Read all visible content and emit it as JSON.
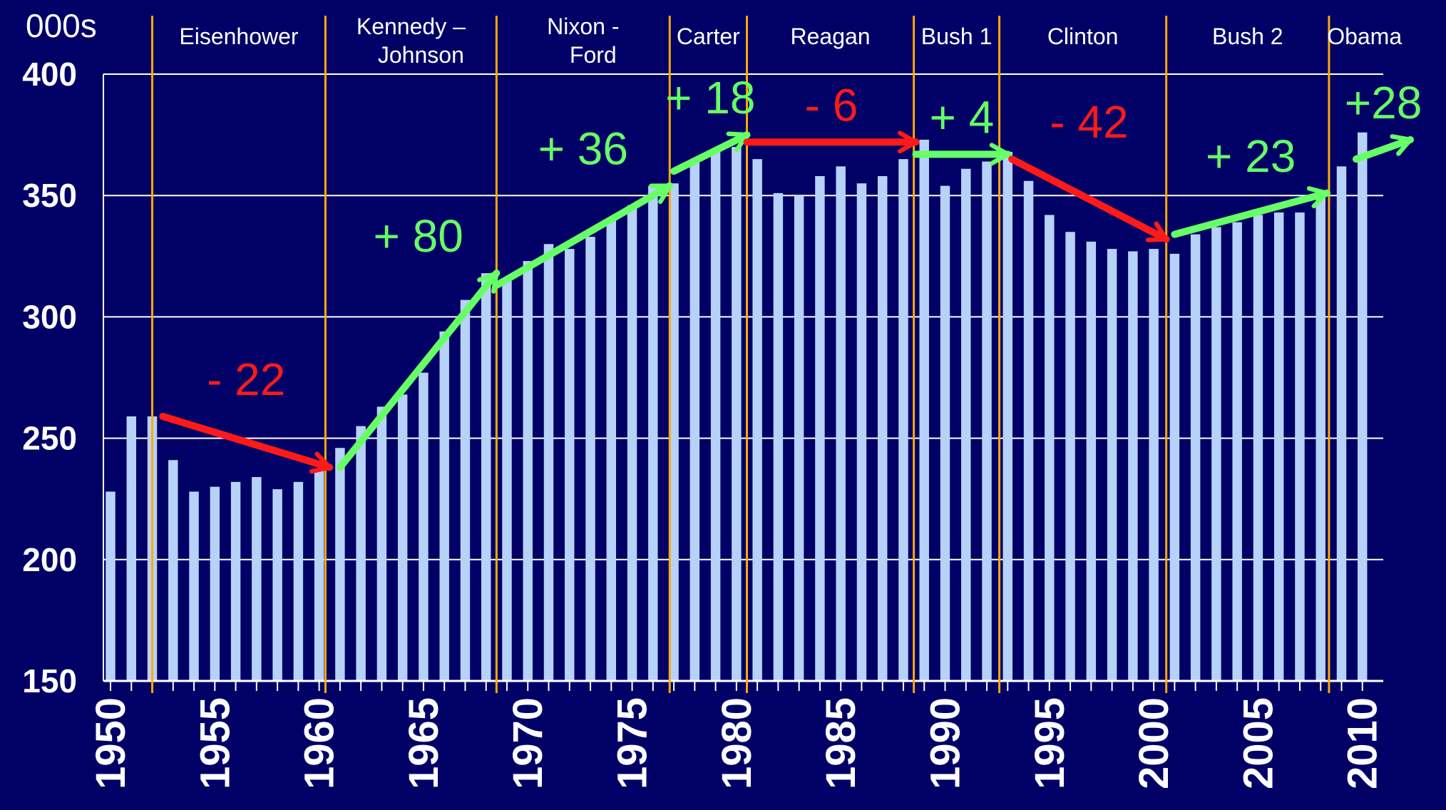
{
  "chart_data": {
    "type": "bar",
    "unit_label": "000s",
    "x": [
      1950,
      1951,
      1952,
      1953,
      1954,
      1955,
      1956,
      1957,
      1958,
      1959,
      1960,
      1961,
      1962,
      1963,
      1964,
      1965,
      1966,
      1967,
      1968,
      1969,
      1970,
      1971,
      1972,
      1973,
      1974,
      1975,
      1976,
      1977,
      1978,
      1979,
      1980,
      1981,
      1982,
      1983,
      1984,
      1985,
      1986,
      1987,
      1988,
      1989,
      1990,
      1991,
      1992,
      1993,
      1994,
      1995,
      1996,
      1997,
      1998,
      1999,
      2000,
      2001,
      2002,
      2003,
      2004,
      2005,
      2006,
      2007,
      2008,
      2009,
      2010
    ],
    "values": [
      228,
      259,
      259,
      241,
      228,
      230,
      232,
      234,
      229,
      232,
      237,
      246,
      255,
      263,
      268,
      277,
      294,
      307,
      318,
      316,
      323,
      330,
      328,
      333,
      340,
      346,
      354,
      355,
      365,
      369,
      370,
      365,
      351,
      350,
      358,
      362,
      355,
      358,
      365,
      373,
      354,
      361,
      364,
      368,
      356,
      342,
      335,
      331,
      328,
      327,
      328,
      326,
      334,
      337,
      339,
      342,
      343,
      343,
      349,
      362,
      376
    ],
    "ylim": [
      150,
      400
    ],
    "yticks": [
      150,
      200,
      250,
      300,
      350,
      400
    ],
    "xtick_labels": [
      "1950",
      "1955",
      "1960",
      "1965",
      "1970",
      "1975",
      "1980",
      "1985",
      "1990",
      "1995",
      "2000",
      "2005",
      "2010"
    ],
    "grid": true,
    "bar_color": "#b7d2f8",
    "eras": [
      {
        "lines": [
          "Eisenhower"
        ]
      },
      {
        "lines": [
          "Kennedy –",
          "Johnson"
        ]
      },
      {
        "lines": [
          "Nixon -",
          "Ford"
        ]
      },
      {
        "lines": [
          "Carter"
        ]
      },
      {
        "lines": [
          "Reagan"
        ]
      },
      {
        "lines": [
          "Bush 1"
        ]
      },
      {
        "lines": [
          "Clinton"
        ]
      },
      {
        "lines": [
          "Bush 2"
        ]
      },
      {
        "lines": [
          "Obama"
        ]
      }
    ],
    "era_boundaries": [
      1952,
      1960.3,
      1968.5,
      1976.8,
      1980.5,
      1988.5,
      1992.6,
      2000.6,
      2008.4
    ],
    "changes": [
      {
        "label": "- 22",
        "color": "#ff1a1a",
        "from": [
          1952.5,
          259
        ],
        "to": [
          1960.5,
          238
        ]
      },
      {
        "label": "+ 80",
        "color": "#66ff66",
        "from": [
          1961,
          238
        ],
        "to": [
          1968.5,
          318
        ]
      },
      {
        "label": "+ 36",
        "color": "#66ff66",
        "from": [
          1968.5,
          313
        ],
        "to": [
          1976.8,
          354
        ]
      },
      {
        "label": "+ 18",
        "color": "#66ff66",
        "from": [
          1977,
          360
        ],
        "to": [
          1980.5,
          375
        ]
      },
      {
        "label": "- 6",
        "color": "#ff1a1a",
        "from": [
          1980.5,
          372
        ],
        "to": [
          1988.6,
          372
        ]
      },
      {
        "label": "+ 4",
        "color": "#66ff66",
        "from": [
          1988.6,
          367
        ],
        "to": [
          1993,
          367
        ]
      },
      {
        "label": "- 42",
        "color": "#ff1a1a",
        "from": [
          1993.2,
          365
        ],
        "to": [
          2000.6,
          332
        ]
      },
      {
        "label": "+ 23",
        "color": "#66ff66",
        "from": [
          2001,
          334
        ],
        "to": [
          2008.3,
          351
        ]
      },
      {
        "label": "+28",
        "color": "#66ff66",
        "from": [
          2009.7,
          365
        ],
        "to": [
          2012.3,
          373
        ]
      }
    ],
    "colors": {
      "background": "#000066",
      "grid": "#ffffff",
      "era_line": "#ffaa00",
      "up": "#66ff66",
      "down": "#ff1a1a"
    }
  }
}
